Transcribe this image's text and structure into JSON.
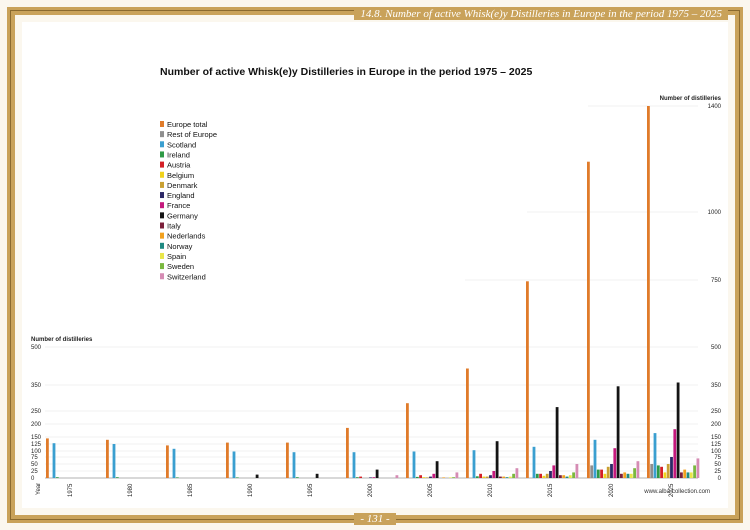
{
  "header": {
    "text": "14.8. Number of active Whisk(e)y Distilleries in Europe in the period 1975 – 2025"
  },
  "footer": {
    "page": "- 131 -",
    "site": "www.alba-collection.com"
  },
  "chart_data": {
    "type": "bar",
    "title": "Number of active Whisk(e)y Distilleries in Europe in the period 1975 – 2025",
    "xlabel": "Year",
    "ylabel": "Number of distilleries",
    "right_axis_label": "Number of distilleries",
    "categories": [
      "1975",
      "1980",
      "1985",
      "1990",
      "1995",
      "2000",
      "2005",
      "2010",
      "2015",
      "2020",
      "2025"
    ],
    "left_ticks": [
      0,
      25,
      50,
      75,
      100,
      125,
      150,
      200,
      250,
      350,
      500
    ],
    "right_ticks": [
      0,
      25,
      50,
      75,
      100,
      125,
      150,
      200,
      250,
      350,
      500,
      750,
      1000,
      1400
    ],
    "colors": {
      "Europe total": "#e07b2a",
      "Rest of Europe": "#8e8e8e",
      "Scotland": "#3a9fd0",
      "Ireland": "#2e9a46",
      "Austria": "#d42027",
      "Belgium": "#f0d21c",
      "Denmark": "#c9a032",
      "England": "#2b2766",
      "France": "#c5197d",
      "Germany": "#141414",
      "Italy": "#7b1f3a",
      "Nederlands": "#f2a11e",
      "Norway": "#1e8a82",
      "Spain": "#e9e64a",
      "Sweden": "#7ab83f",
      "Switzerland": "#d58cb4"
    },
    "legend": [
      "Europe total",
      "Rest of Europe",
      "Scotland",
      "Ireland",
      "Austria",
      "Belgium",
      "Denmark",
      "England",
      "France",
      "Germany",
      "Italy",
      "Nederlands",
      "Norway",
      "Spain",
      "Sweden",
      "Switzerland"
    ],
    "series": [
      {
        "name": "Europe total",
        "values": [
          145,
          140,
          120,
          130,
          130,
          185,
          280,
          415,
          745,
          1190,
          1400
        ]
      },
      {
        "name": "Rest of Europe",
        "values": [
          0,
          0,
          0,
          0,
          0,
          0,
          0,
          0,
          0,
          45,
          50
        ]
      },
      {
        "name": "Scotland",
        "values": [
          128,
          125,
          108,
          98,
          95,
          95,
          98,
          103,
          115,
          140,
          165
        ]
      },
      {
        "name": "Ireland",
        "values": [
          3,
          3,
          2,
          2,
          3,
          3,
          4,
          6,
          15,
          30,
          45
        ]
      },
      {
        "name": "Austria",
        "values": [
          0,
          0,
          0,
          0,
          0,
          5,
          10,
          15,
          15,
          30,
          40
        ]
      },
      {
        "name": "Belgium",
        "values": [
          0,
          0,
          0,
          0,
          0,
          0,
          3,
          5,
          8,
          15,
          20
        ]
      },
      {
        "name": "Denmark",
        "values": [
          0,
          0,
          0,
          0,
          0,
          0,
          2,
          5,
          15,
          40,
          50
        ]
      },
      {
        "name": "England",
        "values": [
          0,
          0,
          0,
          0,
          0,
          2,
          5,
          10,
          25,
          50,
          75
        ]
      },
      {
        "name": "France",
        "values": [
          0,
          0,
          0,
          0,
          0,
          3,
          15,
          25,
          45,
          110,
          180
        ]
      },
      {
        "name": "Germany",
        "values": [
          0,
          0,
          0,
          12,
          15,
          30,
          60,
          135,
          265,
          345,
          360
        ]
      },
      {
        "name": "Italy",
        "values": [
          0,
          0,
          0,
          0,
          0,
          0,
          0,
          5,
          10,
          15,
          20
        ]
      },
      {
        "name": "Nederlands",
        "values": [
          0,
          0,
          0,
          0,
          0,
          0,
          2,
          5,
          10,
          20,
          30
        ]
      },
      {
        "name": "Norway",
        "values": [
          0,
          0,
          0,
          0,
          0,
          0,
          0,
          3,
          5,
          15,
          20
        ]
      },
      {
        "name": "Spain",
        "values": [
          0,
          0,
          0,
          0,
          0,
          0,
          2,
          5,
          10,
          15,
          20
        ]
      },
      {
        "name": "Sweden",
        "values": [
          0,
          0,
          0,
          0,
          0,
          0,
          3,
          15,
          20,
          35,
          45
        ]
      },
      {
        "name": "Switzerland",
        "values": [
          0,
          0,
          0,
          0,
          0,
          10,
          20,
          35,
          50,
          60,
          70
        ]
      }
    ]
  }
}
